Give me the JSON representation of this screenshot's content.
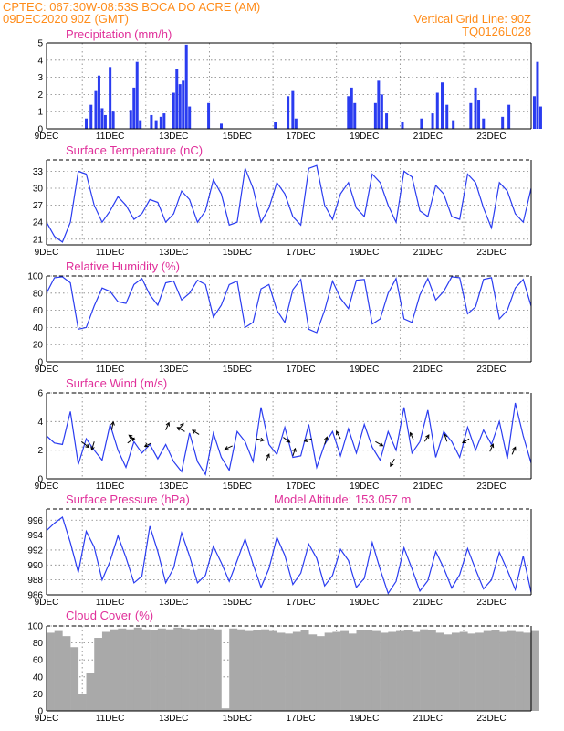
{
  "header": {
    "line1": "CPTEC:   067:30W-08:53S   BOCA DO ACRE (AM)",
    "line2_left": "09DEC2020 90Z (GMT)",
    "line2_right": "Vertical Grid Line: 90Z",
    "line3_right": "TQ0126L028"
  },
  "colors": {
    "header": "#ff8c1a",
    "panel_title": "#e0309a",
    "series": "#2a3cf0",
    "cloud": "#a9a9a9",
    "wind_arrow": "#000000"
  },
  "x_axis": {
    "start_label": "9DEC",
    "labels": [
      "11DEC",
      "13DEC",
      "15DEC",
      "17DEC",
      "19DEC",
      "21DEC",
      "23DEC"
    ]
  },
  "chart_data": [
    {
      "id": "precip",
      "type": "bar",
      "title": "Precipitation  (mm/h)",
      "ylim": [
        0,
        5
      ],
      "yticks": [
        "0",
        "1",
        "2",
        "3",
        "4",
        "5"
      ],
      "x_unit": "days since 9DEC 00Z",
      "bars": [
        [
          1.25,
          0.6
        ],
        [
          1.4,
          1.4
        ],
        [
          1.55,
          2.2
        ],
        [
          1.65,
          3.1
        ],
        [
          1.75,
          1.2
        ],
        [
          1.85,
          0.8
        ],
        [
          2.0,
          3.6
        ],
        [
          2.1,
          1.0
        ],
        [
          2.65,
          1.1
        ],
        [
          2.75,
          2.4
        ],
        [
          2.85,
          3.9
        ],
        [
          2.95,
          0.5
        ],
        [
          3.3,
          0.8
        ],
        [
          3.45,
          0.5
        ],
        [
          3.6,
          0.7
        ],
        [
          3.7,
          0.9
        ],
        [
          4.0,
          2.1
        ],
        [
          4.1,
          3.5
        ],
        [
          4.2,
          2.6
        ],
        [
          4.3,
          2.8
        ],
        [
          4.4,
          4.9
        ],
        [
          4.5,
          1.3
        ],
        [
          5.1,
          1.5
        ],
        [
          5.5,
          0.3
        ],
        [
          7.2,
          0.4
        ],
        [
          7.6,
          1.9
        ],
        [
          7.75,
          2.2
        ],
        [
          7.85,
          0.6
        ],
        [
          9.5,
          1.9
        ],
        [
          9.6,
          2.4
        ],
        [
          9.7,
          1.5
        ],
        [
          10.35,
          1.5
        ],
        [
          10.45,
          2.8
        ],
        [
          10.55,
          2.0
        ],
        [
          10.7,
          0.9
        ],
        [
          11.2,
          0.4
        ],
        [
          11.8,
          0.6
        ],
        [
          12.15,
          0.9
        ],
        [
          12.3,
          2.1
        ],
        [
          12.45,
          2.7
        ],
        [
          12.6,
          1.4
        ],
        [
          12.8,
          0.5
        ],
        [
          13.35,
          1.5
        ],
        [
          13.5,
          2.4
        ],
        [
          13.6,
          1.7
        ],
        [
          13.75,
          0.6
        ],
        [
          14.35,
          0.7
        ],
        [
          14.55,
          1.4
        ],
        [
          15.35,
          1.9
        ],
        [
          15.45,
          3.9
        ],
        [
          15.55,
          1.3
        ]
      ]
    },
    {
      "id": "temp",
      "type": "line",
      "title": "Surface Temperature  (nC)",
      "ylim": [
        20,
        35
      ],
      "yticks": [
        "21",
        "24",
        "27",
        "30",
        "33"
      ],
      "x": [
        0.0,
        0.25,
        0.5,
        0.75,
        1.0,
        1.25,
        1.5,
        1.75,
        2.0,
        2.25,
        2.5,
        2.75,
        3.0,
        3.25,
        3.5,
        3.75,
        4.0,
        4.25,
        4.5,
        4.75,
        5.0,
        5.25,
        5.5,
        5.75,
        6.0,
        6.25,
        6.5,
        6.75,
        7.0,
        7.25,
        7.5,
        7.75,
        8.0,
        8.25,
        8.5,
        8.75,
        9.0,
        9.25,
        9.5,
        9.75,
        10.0,
        10.25,
        10.5,
        10.75,
        11.0,
        11.25,
        11.5,
        11.75,
        12.0,
        12.25,
        12.5,
        12.75,
        13.0,
        13.25,
        13.5,
        13.75,
        14.0,
        14.25,
        14.5,
        14.75,
        15.0,
        15.25
      ],
      "y": [
        24,
        21.5,
        20.5,
        24,
        33,
        32.5,
        27,
        24,
        26,
        28.5,
        27,
        24.5,
        25.5,
        28,
        27.5,
        24,
        25.5,
        29.5,
        28,
        24,
        26,
        31.5,
        29,
        23.5,
        24,
        33.5,
        30,
        24,
        26.5,
        31,
        29,
        25,
        23.5,
        33.5,
        34,
        27,
        24.5,
        29,
        31,
        26.5,
        25,
        32.5,
        31,
        27,
        24,
        33,
        32,
        26,
        25,
        30.5,
        29,
        25,
        24.5,
        32.5,
        31,
        26.5,
        23,
        31,
        29.5,
        25.5,
        24,
        30
      ]
    },
    {
      "id": "rh",
      "type": "line",
      "title": "Relative Humidity  (%)",
      "ylim": [
        0,
        100
      ],
      "yticks": [
        "0",
        "20",
        "40",
        "60",
        "80",
        "100"
      ],
      "x": [
        0.0,
        0.25,
        0.5,
        0.75,
        1.0,
        1.25,
        1.5,
        1.75,
        2.0,
        2.25,
        2.5,
        2.75,
        3.0,
        3.25,
        3.5,
        3.75,
        4.0,
        4.25,
        4.5,
        4.75,
        5.0,
        5.25,
        5.5,
        5.75,
        6.0,
        6.25,
        6.5,
        6.75,
        7.0,
        7.25,
        7.5,
        7.75,
        8.0,
        8.25,
        8.5,
        8.75,
        9.0,
        9.25,
        9.5,
        9.75,
        10.0,
        10.25,
        10.5,
        10.75,
        11.0,
        11.25,
        11.5,
        11.75,
        12.0,
        12.25,
        12.5,
        12.75,
        13.0,
        13.25,
        13.5,
        13.75,
        14.0,
        14.25,
        14.5,
        14.75,
        15.0,
        15.25
      ],
      "y": [
        80,
        98,
        99,
        92,
        38,
        40,
        65,
        86,
        82,
        70,
        68,
        90,
        97,
        78,
        66,
        92,
        94,
        72,
        80,
        95,
        90,
        52,
        66,
        90,
        94,
        40,
        46,
        85,
        90,
        60,
        46,
        84,
        96,
        38,
        34,
        60,
        94,
        74,
        62,
        95,
        96,
        44,
        50,
        80,
        97,
        50,
        46,
        78,
        97,
        72,
        82,
        99,
        98,
        56,
        64,
        96,
        98,
        50,
        60,
        86,
        96,
        65
      ]
    },
    {
      "id": "wind",
      "type": "line",
      "title": "Surface Wind  (m/s)",
      "ylim": [
        0,
        6
      ],
      "yticks": [
        "0",
        "2",
        "4",
        "6"
      ],
      "x": [
        0.0,
        0.25,
        0.5,
        0.75,
        1.0,
        1.25,
        1.5,
        1.75,
        2.0,
        2.25,
        2.5,
        2.75,
        3.0,
        3.25,
        3.5,
        3.75,
        4.0,
        4.25,
        4.5,
        4.75,
        5.0,
        5.25,
        5.5,
        5.75,
        6.0,
        6.25,
        6.5,
        6.75,
        7.0,
        7.25,
        7.5,
        7.75,
        8.0,
        8.25,
        8.5,
        8.75,
        9.0,
        9.25,
        9.5,
        9.75,
        10.0,
        10.25,
        10.5,
        10.75,
        11.0,
        11.25,
        11.5,
        11.75,
        12.0,
        12.25,
        12.5,
        12.75,
        13.0,
        13.25,
        13.5,
        13.75,
        14.0,
        14.25,
        14.5,
        14.75,
        15.0,
        15.25
      ],
      "y": [
        3,
        2.5,
        2.4,
        4.7,
        1.0,
        2.8,
        2.0,
        1.3,
        3.8,
        2.0,
        0.8,
        2.6,
        1.8,
        2.4,
        1.4,
        2.4,
        1.2,
        0.5,
        3.2,
        1.2,
        0.3,
        3.2,
        1.5,
        0.6,
        3.3,
        2.6,
        1.2,
        5.0,
        2.4,
        1.7,
        3.6,
        1.5,
        1.6,
        3.8,
        0.8,
        2.4,
        3.3,
        1.6,
        3.5,
        1.8,
        3.8,
        2.2,
        1.3,
        3.3,
        2.0,
        5.0,
        1.8,
        2.6,
        4.8,
        1.5,
        3.3,
        2.6,
        1.5,
        3.6,
        2.0,
        3.4,
        2.4,
        4.0,
        1.4,
        5.3,
        3.0,
        1.1
      ],
      "vectors": [
        [
          1.1,
          2.6,
          0.9,
          -0.7
        ],
        [
          1.5,
          2.6,
          -0.3,
          -1.0
        ],
        [
          2.05,
          3.4,
          0.2,
          1.0
        ],
        [
          2.55,
          2.5,
          0.8,
          0.6
        ],
        [
          2.8,
          2.7,
          -0.8,
          0.6
        ],
        [
          3.3,
          2.5,
          -0.8,
          -0.4
        ],
        [
          3.75,
          3.4,
          0.4,
          0.9
        ],
        [
          4.15,
          3.4,
          0.6,
          0.8
        ],
        [
          4.35,
          3.3,
          -0.9,
          0.5
        ],
        [
          4.8,
          3.1,
          -0.8,
          0.5
        ],
        [
          5.85,
          2.3,
          -0.9,
          -0.4
        ],
        [
          6.6,
          2.8,
          0.9,
          -0.2
        ],
        [
          6.9,
          1.2,
          0.4,
          0.9
        ],
        [
          7.45,
          2.9,
          0.8,
          -0.6
        ],
        [
          7.75,
          1.6,
          0.3,
          0.9
        ],
        [
          8.35,
          2.8,
          -0.9,
          -0.3
        ],
        [
          8.75,
          2.4,
          0.3,
          0.9
        ],
        [
          9.25,
          2.8,
          -0.5,
          0.9
        ],
        [
          10.35,
          2.6,
          0.9,
          -0.5
        ],
        [
          10.95,
          1.4,
          -0.5,
          -0.9
        ],
        [
          11.55,
          2.7,
          -0.4,
          0.9
        ],
        [
          11.9,
          2.6,
          0.5,
          0.8
        ],
        [
          12.6,
          2.6,
          -0.3,
          0.9
        ],
        [
          13.3,
          2.8,
          -0.8,
          -0.5
        ],
        [
          13.95,
          1.9,
          0.4,
          0.9
        ],
        [
          14.65,
          1.7,
          0.4,
          0.9
        ]
      ]
    },
    {
      "id": "pressure",
      "type": "line",
      "title": "Surface Pressure  (hPa)",
      "subtitle": "Model Altitude: 153.057  m",
      "ylim": [
        986,
        997.5
      ],
      "yticks": [
        "986",
        "988",
        "990",
        "992",
        "994",
        "996"
      ],
      "x": [
        0.0,
        0.25,
        0.5,
        0.75,
        1.0,
        1.25,
        1.5,
        1.75,
        2.0,
        2.25,
        2.5,
        2.75,
        3.0,
        3.25,
        3.5,
        3.75,
        4.0,
        4.25,
        4.5,
        4.75,
        5.0,
        5.25,
        5.5,
        5.75,
        6.0,
        6.25,
        6.5,
        6.75,
        7.0,
        7.25,
        7.5,
        7.75,
        8.0,
        8.25,
        8.5,
        8.75,
        9.0,
        9.25,
        9.5,
        9.75,
        10.0,
        10.25,
        10.5,
        10.75,
        11.0,
        11.25,
        11.5,
        11.75,
        12.0,
        12.25,
        12.5,
        12.75,
        13.0,
        13.25,
        13.5,
        13.75,
        14.0,
        14.25,
        14.5,
        14.75,
        15.0,
        15.25
      ],
      "y": [
        994.6,
        995.6,
        996.4,
        993.0,
        989.0,
        994.5,
        992.4,
        988.0,
        990.5,
        993.9,
        991.0,
        987.6,
        988.5,
        995.2,
        991.8,
        987.6,
        989.6,
        994.3,
        991.2,
        987.6,
        988.6,
        992.5,
        990.3,
        987.8,
        990.6,
        993.5,
        990.1,
        987.0,
        989.5,
        993.7,
        991.3,
        987.4,
        988.9,
        992.8,
        990.9,
        987.2,
        988.6,
        992.1,
        990.6,
        987.0,
        988.2,
        993.0,
        989.4,
        986.2,
        987.8,
        992.3,
        989.5,
        986.5,
        987.9,
        991.8,
        989.6,
        986.9,
        988.7,
        992.2,
        989.4,
        986.8,
        988.0,
        991.7,
        989.3,
        986.7,
        991.2,
        986.3
      ]
    },
    {
      "id": "cloud",
      "type": "bar",
      "title": "Cloud Cover  (%)",
      "ylim": [
        0,
        100
      ],
      "yticks": [
        "0",
        "20",
        "40",
        "60",
        "80",
        "100"
      ],
      "x": [
        0.0,
        0.25,
        0.5,
        0.75,
        1.0,
        1.25,
        1.5,
        1.75,
        2.0,
        2.25,
        2.5,
        2.75,
        3.0,
        3.25,
        3.5,
        3.75,
        4.0,
        4.25,
        4.5,
        4.75,
        5.0,
        5.25,
        5.5,
        5.75,
        6.0,
        6.25,
        6.5,
        6.75,
        7.0,
        7.25,
        7.5,
        7.75,
        8.0,
        8.25,
        8.5,
        8.75,
        9.0,
        9.25,
        9.5,
        9.75,
        10.0,
        10.25,
        10.5,
        10.75,
        11.0,
        11.25,
        11.5,
        11.75,
        12.0,
        12.25,
        12.5,
        12.75,
        13.0,
        13.25,
        13.5,
        13.75,
        14.0,
        14.25,
        14.5,
        14.75,
        15.0,
        15.25
      ],
      "y": [
        92,
        94,
        88,
        75,
        20,
        45,
        86,
        93,
        96,
        97,
        96,
        98,
        96,
        95,
        97,
        96,
        98,
        97,
        96,
        97,
        97,
        96,
        3,
        97,
        96,
        94,
        95,
        96,
        94,
        92,
        91,
        93,
        95,
        90,
        88,
        92,
        93,
        94,
        91,
        95,
        95,
        94,
        92,
        93,
        94,
        95,
        93,
        96,
        95,
        92,
        90,
        92,
        93,
        91,
        92,
        94,
        95,
        93,
        94,
        93,
        92,
        94
      ]
    }
  ]
}
